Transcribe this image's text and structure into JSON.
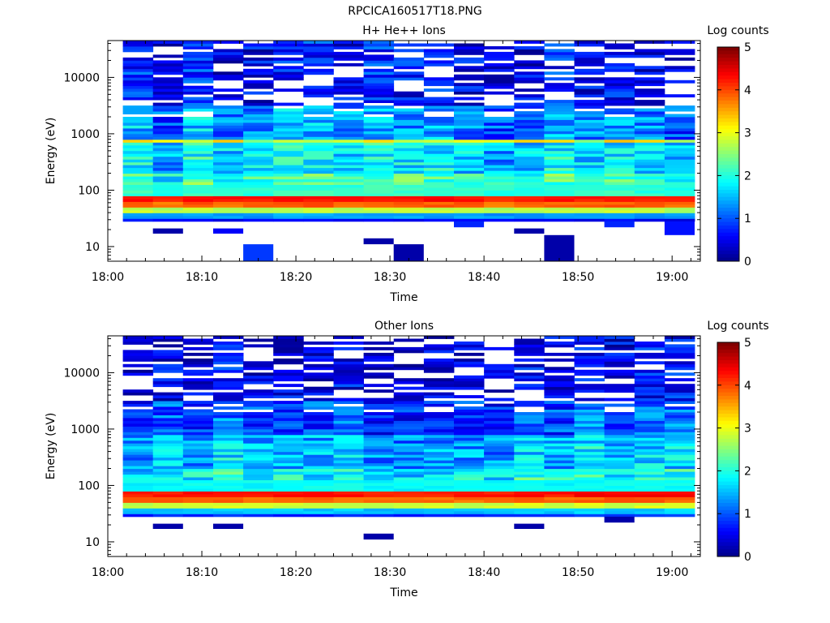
{
  "figure_title": "RPCICA160517T18.PNG",
  "colormap_stops": [
    "#000080",
    "#0000ff",
    "#0080ff",
    "#00ffff",
    "#80ff80",
    "#ffff00",
    "#ff8000",
    "#ff0000",
    "#800000"
  ],
  "chart_data": [
    {
      "type": "heatmap",
      "title": "H+ He++ Ions",
      "xlabel": "Time",
      "ylabel": "Energy (eV)",
      "x_ticks": [
        "18:00",
        "18:10",
        "18:20",
        "18:30",
        "18:40",
        "18:50",
        "19:00"
      ],
      "x_tick_minutes": [
        0,
        10,
        20,
        30,
        40,
        50,
        60
      ],
      "xlim_minutes": [
        0,
        63
      ],
      "y_scale": "log",
      "ylim": [
        5.5,
        45000
      ],
      "y_ticks": [
        10,
        100,
        1000,
        10000
      ],
      "y_tick_labels": [
        "10",
        "100",
        "1000",
        "10000"
      ],
      "colorbar": {
        "label": "Log counts",
        "range": [
          0,
          5
        ],
        "ticks": [
          "0",
          "1",
          "2",
          "3",
          "4",
          "5"
        ]
      },
      "time_bins_minutes": [
        [
          1.6,
          4.8
        ],
        [
          4.8,
          8.0
        ],
        [
          8.0,
          11.2
        ],
        [
          11.2,
          14.4
        ],
        [
          14.4,
          17.6
        ],
        [
          17.6,
          20.8
        ],
        [
          20.8,
          24.0
        ],
        [
          24.0,
          27.2
        ],
        [
          27.2,
          30.4
        ],
        [
          30.4,
          33.6
        ],
        [
          33.6,
          36.8
        ],
        [
          36.8,
          40.0
        ],
        [
          40.0,
          43.2
        ],
        [
          43.2,
          46.4
        ],
        [
          46.4,
          49.6
        ],
        [
          49.6,
          52.8
        ],
        [
          52.8,
          56.0
        ],
        [
          56.0,
          59.2
        ],
        [
          59.2,
          62.4
        ]
      ],
      "energy_profile": [
        {
          "e_min": 28,
          "e_max": 33,
          "value": 0.6
        },
        {
          "e_min": 33,
          "e_max": 40,
          "value": 1.4
        },
        {
          "e_min": 40,
          "e_max": 50,
          "value": 2.8
        },
        {
          "e_min": 50,
          "e_max": 62,
          "value": 3.9
        },
        {
          "e_min": 62,
          "e_max": 80,
          "value": 4.3
        },
        {
          "e_min": 80,
          "e_max": 200,
          "value": 2.1
        },
        {
          "e_min": 200,
          "e_max": 680,
          "value": 1.7
        },
        {
          "e_min": 680,
          "e_max": 800,
          "value": 3.0
        },
        {
          "e_min": 800,
          "e_max": 3000,
          "value": 1.3
        },
        {
          "e_min": 3000,
          "e_max": 45000,
          "value": 0.6
        }
      ],
      "sparse_low_energy_cells": [
        {
          "t_min": 4.8,
          "t_max": 8.0,
          "e_min": 17,
          "e_max": 21,
          "value": 0.2
        },
        {
          "t_min": 11.2,
          "t_max": 14.4,
          "e_min": 17,
          "e_max": 21,
          "value": 0.6
        },
        {
          "t_min": 14.4,
          "t_max": 17.6,
          "e_min": 5.5,
          "e_max": 11,
          "value": 0.9
        },
        {
          "t_min": 27.2,
          "t_max": 30.4,
          "e_min": 11,
          "e_max": 14,
          "value": 0.2
        },
        {
          "t_min": 30.4,
          "t_max": 33.6,
          "e_min": 5.5,
          "e_max": 11,
          "value": 0.2
        },
        {
          "t_min": 43.2,
          "t_max": 46.4,
          "e_min": 17,
          "e_max": 21,
          "value": 0.2
        },
        {
          "t_min": 46.4,
          "t_max": 49.6,
          "e_min": 5.5,
          "e_max": 16,
          "value": 0.2
        },
        {
          "t_min": 36.8,
          "t_max": 40.0,
          "e_min": 22,
          "e_max": 28,
          "value": 0.8
        },
        {
          "t_min": 52.8,
          "t_max": 56.0,
          "e_min": 22,
          "e_max": 28,
          "value": 0.8
        },
        {
          "t_min": 59.2,
          "t_max": 62.4,
          "e_min": 16,
          "e_max": 28,
          "value": 0.7
        }
      ]
    },
    {
      "type": "heatmap",
      "title": "Other Ions",
      "xlabel": "Time",
      "ylabel": "Energy (eV)",
      "x_ticks": [
        "18:00",
        "18:10",
        "18:20",
        "18:30",
        "18:40",
        "18:50",
        "19:00"
      ],
      "x_tick_minutes": [
        0,
        10,
        20,
        30,
        40,
        50,
        60
      ],
      "xlim_minutes": [
        0,
        63
      ],
      "y_scale": "log",
      "ylim": [
        5.5,
        45000
      ],
      "y_ticks": [
        10,
        100,
        1000,
        10000
      ],
      "y_tick_labels": [
        "10",
        "100",
        "1000",
        "10000"
      ],
      "colorbar": {
        "label": "Log counts",
        "range": [
          0,
          5
        ],
        "ticks": [
          "0",
          "1",
          "2",
          "3",
          "4",
          "5"
        ]
      },
      "time_bins_minutes": [
        [
          1.6,
          4.8
        ],
        [
          4.8,
          8.0
        ],
        [
          8.0,
          11.2
        ],
        [
          11.2,
          14.4
        ],
        [
          14.4,
          17.6
        ],
        [
          17.6,
          20.8
        ],
        [
          20.8,
          24.0
        ],
        [
          24.0,
          27.2
        ],
        [
          27.2,
          30.4
        ],
        [
          30.4,
          33.6
        ],
        [
          33.6,
          36.8
        ],
        [
          36.8,
          40.0
        ],
        [
          40.0,
          43.2
        ],
        [
          43.2,
          46.4
        ],
        [
          46.4,
          49.6
        ],
        [
          49.6,
          52.8
        ],
        [
          52.8,
          56.0
        ],
        [
          56.0,
          59.2
        ],
        [
          59.2,
          62.4
        ]
      ],
      "energy_profile": [
        {
          "e_min": 28,
          "e_max": 33,
          "value": 0.8
        },
        {
          "e_min": 33,
          "e_max": 40,
          "value": 1.6
        },
        {
          "e_min": 40,
          "e_max": 50,
          "value": 2.9
        },
        {
          "e_min": 50,
          "e_max": 62,
          "value": 3.9
        },
        {
          "e_min": 62,
          "e_max": 80,
          "value": 4.3
        },
        {
          "e_min": 80,
          "e_max": 200,
          "value": 1.9
        },
        {
          "e_min": 200,
          "e_max": 800,
          "value": 1.5
        },
        {
          "e_min": 800,
          "e_max": 3000,
          "value": 1.0
        },
        {
          "e_min": 3000,
          "e_max": 45000,
          "value": 0.5
        }
      ],
      "sparse_low_energy_cells": [
        {
          "t_min": 4.8,
          "t_max": 8.0,
          "e_min": 17,
          "e_max": 21,
          "value": 0.2
        },
        {
          "t_min": 11.2,
          "t_max": 14.4,
          "e_min": 17,
          "e_max": 21,
          "value": 0.2
        },
        {
          "t_min": 27.2,
          "t_max": 30.4,
          "e_min": 11,
          "e_max": 14,
          "value": 0.2
        },
        {
          "t_min": 43.2,
          "t_max": 46.4,
          "e_min": 17,
          "e_max": 21,
          "value": 0.2
        },
        {
          "t_min": 52.8,
          "t_max": 56.0,
          "e_min": 22,
          "e_max": 28,
          "value": 0.2
        }
      ]
    }
  ]
}
